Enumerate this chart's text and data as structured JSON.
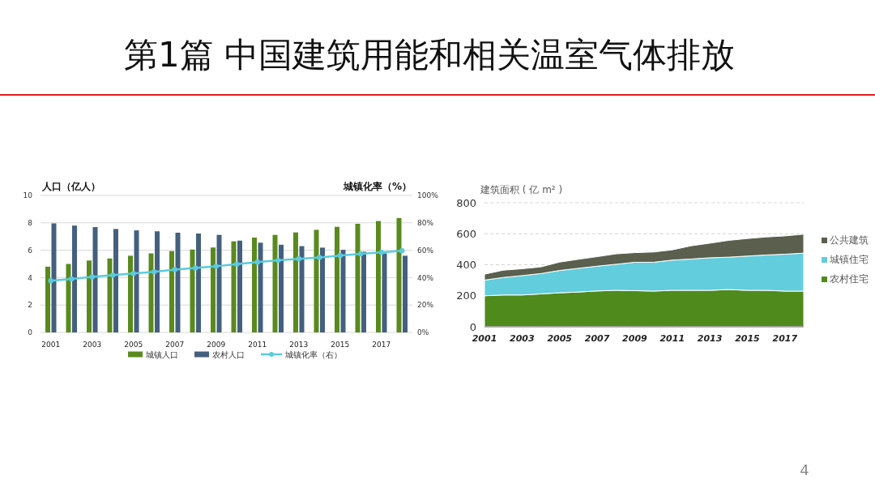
{
  "chart_data": [
    {
      "type": "bar",
      "title": "第1篇  中国建筑用能和相关温室气体排放",
      "ylabel": "人口（亿人）",
      "y2label": "城镇化率（%）",
      "categories": [
        "2001",
        null,
        "2003",
        null,
        "2005",
        null,
        "2007",
        null,
        "2009",
        null,
        "2011",
        null,
        "2013",
        null,
        "2015",
        null,
        "2017",
        null
      ],
      "series": [
        {
          "name": "城镇人口",
          "type": "bar",
          "color": "#5a8a1e",
          "values": [
            4.8,
            5.0,
            5.25,
            5.4,
            5.6,
            5.77,
            5.94,
            6.05,
            6.2,
            6.65,
            6.92,
            7.12,
            7.3,
            7.49,
            7.71,
            7.93,
            8.13,
            8.35
          ]
        },
        {
          "name": "农村人口",
          "type": "bar",
          "color": "#44607e",
          "values": [
            7.96,
            7.8,
            7.69,
            7.55,
            7.45,
            7.38,
            7.28,
            7.22,
            7.12,
            6.7,
            6.55,
            6.4,
            6.3,
            6.19,
            6.03,
            5.89,
            5.77,
            5.6
          ]
        },
        {
          "name": "城镇化率（右）",
          "type": "line",
          "axis": "y2",
          "color": "#5bcbdc",
          "marker": "circle",
          "values": [
            37.7,
            39.1,
            40.5,
            41.8,
            43.0,
            44.3,
            45.9,
            47.0,
            48.3,
            49.9,
            51.3,
            52.6,
            53.7,
            54.8,
            56.1,
            57.4,
            58.5,
            59.6
          ]
        }
      ],
      "ylim": [
        0,
        10
      ],
      "yticks": [
        0,
        2,
        4,
        6,
        8,
        10
      ],
      "y2lim": [
        0,
        100
      ],
      "y2ticks": [
        {
          "value": 0,
          "label": "0%"
        },
        {
          "value": 20,
          "label": "20%"
        },
        {
          "value": 40,
          "label": "40%"
        },
        {
          "value": 60,
          "label": "60%"
        },
        {
          "value": 80,
          "label": "80%"
        },
        {
          "value": 100,
          "label": "100%"
        }
      ],
      "grid": "y",
      "legend": "bottom"
    },
    {
      "type": "area",
      "stacked": true,
      "ylabel": "建筑面积 ( 亿 m² )",
      "x": [
        2001,
        2002,
        2003,
        2004,
        2005,
        2006,
        2007,
        2008,
        2009,
        2010,
        2011,
        2012,
        2013,
        2014,
        2015,
        2016,
        2017,
        2018
      ],
      "series": [
        {
          "name": "农村住宅",
          "color": "#4f8a1c",
          "values": [
            200,
            205,
            205,
            212,
            219,
            224,
            231,
            235,
            233,
            230,
            235,
            235,
            235,
            240,
            235,
            235,
            230,
            230
          ]
        },
        {
          "name": "城镇住宅",
          "color": "#62cddc",
          "values": [
            101,
            113,
            125,
            131,
            144,
            153,
            160,
            168,
            183,
            186,
            195,
            202,
            210,
            209,
            221,
            228,
            238,
            245
          ]
        },
        {
          "name": "公共建筑",
          "color": "#5a5f4e",
          "values": [
            38,
            47,
            44,
            43,
            54,
            58,
            61,
            67,
            62,
            66,
            66,
            85,
            94,
            108,
            113,
            116,
            118,
            122
          ]
        }
      ],
      "xlim": [
        2001,
        2018
      ],
      "xticks": [
        2001,
        2003,
        2005,
        2007,
        2009,
        2011,
        2013,
        2015,
        2017
      ],
      "ylim": [
        0,
        800
      ],
      "yticks": [
        0,
        200,
        400,
        600,
        800
      ],
      "grid": "y",
      "legend": "right",
      "annotations": [
        "4"
      ]
    }
  ]
}
